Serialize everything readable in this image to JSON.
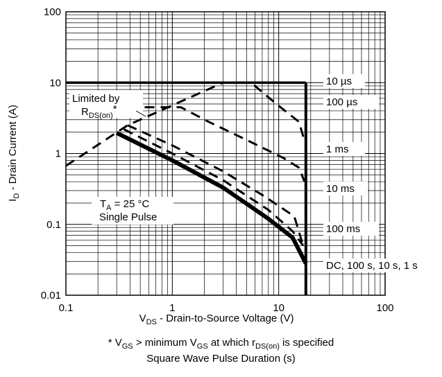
{
  "chart_data": {
    "type": "line",
    "title": "",
    "xscale": "log",
    "yscale": "log",
    "xlim": [
      0.1,
      100
    ],
    "ylim": [
      0.01,
      100
    ],
    "grid": true,
    "x_ticks": [
      "0.1",
      "1",
      "10",
      "100"
    ],
    "y_ticks": [
      "0.01",
      "0.1",
      "1",
      "10",
      "100"
    ],
    "xlabel": {
      "main": "V",
      "sub": "DS",
      "rest": " - Drain-to-Source Voltage (V)"
    },
    "ylabel": {
      "main": "I",
      "sub": "D",
      "rest": " - Drain Current (A)"
    },
    "limit_box": {
      "id_max": 10,
      "vds_max": 18
    },
    "series": [
      {
        "name": "Limited by RDS(on)*",
        "style": "dashed",
        "points": [
          [
            0.1,
            0.67
          ],
          [
            0.38,
            2.5
          ],
          [
            3.0,
            10
          ]
        ]
      },
      {
        "name": "10 µs",
        "style": "solid",
        "points": [
          [
            0.1,
            10
          ],
          [
            18,
            10
          ]
        ]
      },
      {
        "name": "100 µs",
        "style": "dashed",
        "points": [
          [
            3.0,
            10
          ],
          [
            5.5,
            10
          ],
          [
            9.5,
            5.0
          ],
          [
            15.5,
            2.8
          ],
          [
            17.5,
            1.5
          ]
        ]
      },
      {
        "name": "1 ms",
        "style": "dashed",
        "points": [
          [
            0.55,
            4.5
          ],
          [
            1.2,
            4.5
          ],
          [
            2.2,
            2.8
          ],
          [
            5.0,
            1.55
          ],
          [
            11.0,
            0.87
          ],
          [
            15.5,
            0.63
          ],
          [
            17.5,
            0.4
          ]
        ]
      },
      {
        "name": "10 ms",
        "style": "dashed",
        "points": [
          [
            0.38,
            2.5
          ],
          [
            1.0,
            1.3
          ],
          [
            3.0,
            0.56
          ],
          [
            7.0,
            0.26
          ],
          [
            14.0,
            0.13
          ],
          [
            17.0,
            0.05
          ]
        ]
      },
      {
        "name": "100 ms",
        "style": "dashed",
        "points": [
          [
            0.35,
            2.2
          ],
          [
            1.0,
            1.0
          ],
          [
            3.0,
            0.42
          ],
          [
            8.0,
            0.16
          ],
          [
            13.5,
            0.08
          ],
          [
            17.0,
            0.05
          ]
        ]
      },
      {
        "name": "DC, 100 s, 10 s, 1 s",
        "style": "solid",
        "points": [
          [
            0.3,
            1.95
          ],
          [
            1.0,
            0.8
          ],
          [
            3.0,
            0.33
          ],
          [
            8.0,
            0.12
          ],
          [
            13.5,
            0.065
          ],
          [
            18.0,
            0.028
          ]
        ]
      }
    ],
    "annotations": {
      "limited_by": "Limited by",
      "rds_main": "R",
      "rds_sub": "DS(on)",
      "rds_suffix": "*",
      "ta_main": "T",
      "ta_sub": "A",
      "ta_rest": " = 25 °C",
      "single_pulse": "Single Pulse"
    }
  },
  "footnote": {
    "line1_a": "* V",
    "line1_a_sub": "GS",
    "line1_b": " > minimum V",
    "line1_b_sub": "GS",
    "line1_c": " at which r",
    "line1_c_sub": "DS(on)",
    "line1_d": " is specified",
    "line2": "Square Wave Pulse Duration (s)"
  }
}
